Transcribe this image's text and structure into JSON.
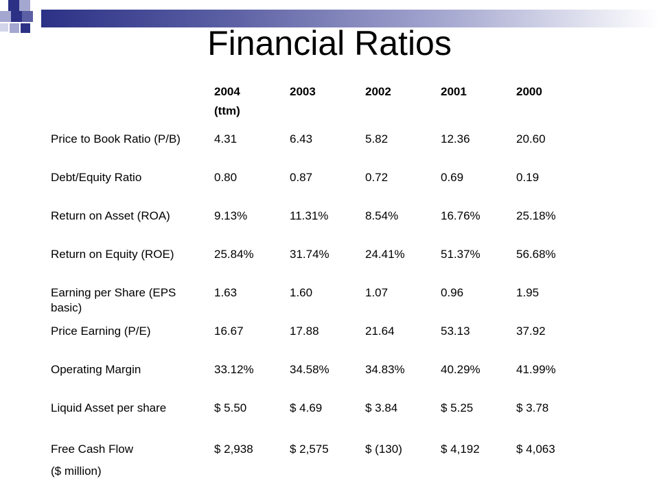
{
  "slide": {
    "title": "Financial Ratios",
    "accent_colors": [
      "#2c3186",
      "#a4a7cf"
    ]
  },
  "table": {
    "columns": [
      {
        "year": "2004",
        "note": "(ttm)"
      },
      {
        "year": "2003",
        "note": ""
      },
      {
        "year": "2002",
        "note": ""
      },
      {
        "year": "2001",
        "note": ""
      },
      {
        "year": "2000",
        "note": ""
      }
    ],
    "rows": [
      {
        "label": "Price to Book Ratio (P/B)",
        "values": [
          "4.31",
          "6.43",
          "5.82",
          "12.36",
          "20.60"
        ]
      },
      {
        "label": "Debt/Equity Ratio",
        "values": [
          "0.80",
          "0.87",
          "0.72",
          "0.69",
          "0.19"
        ]
      },
      {
        "label": "Return on Asset (ROA)",
        "values": [
          "9.13%",
          "11.31%",
          "8.54%",
          "16.76%",
          "25.18%"
        ]
      },
      {
        "label": "Return on Equity (ROE)",
        "values": [
          "25.84%",
          "31.74%",
          "24.41%",
          "51.37%",
          "56.68%"
        ]
      },
      {
        "label": "Earning per Share (EPS basic)",
        "values": [
          "1.63",
          "1.60",
          "1.07",
          "0.96",
          "1.95"
        ]
      },
      {
        "label": "Price Earning (P/E)",
        "values": [
          "16.67",
          "17.88",
          "21.64",
          "53.13",
          "37.92"
        ]
      },
      {
        "label": "Operating Margin",
        "values": [
          "33.12%",
          "34.58%",
          "34.83%",
          "40.29%",
          "41.99%"
        ]
      },
      {
        "label": "Liquid Asset per share",
        "values": [
          "$ 5.50",
          "$ 4.69",
          "$ 3.84",
          "$ 5.25",
          "$ 3.78"
        ]
      },
      {
        "label": "Free Cash Flow",
        "sublabel": "($ million)",
        "values": [
          "$ 2,938",
          "$ 2,575",
          "$ (130)",
          "$ 4,192",
          "$ 4,063"
        ]
      }
    ]
  }
}
